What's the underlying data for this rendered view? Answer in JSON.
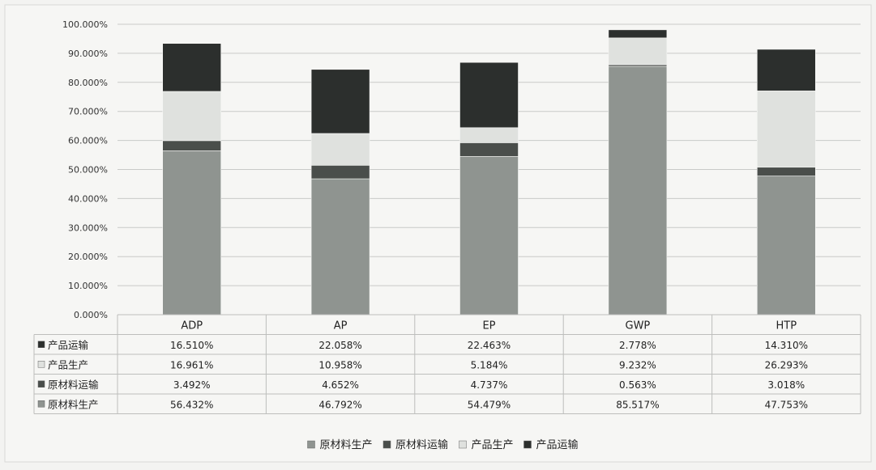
{
  "chart_data": {
    "type": "bar",
    "stacked": true,
    "title": "",
    "xlabel": "",
    "ylabel": "",
    "categories": [
      "ADP",
      "AP",
      "EP",
      "GWP",
      "HTP"
    ],
    "ylim": [
      0,
      100
    ],
    "y_ticks": [
      "0.000%",
      "10.000%",
      "20.000%",
      "30.000%",
      "40.000%",
      "50.000%",
      "60.000%",
      "70.000%",
      "80.000%",
      "90.000%",
      "100.000%"
    ],
    "grid": true,
    "legend_position": "bottom",
    "series": [
      {
        "name": "原材料生产",
        "color": "#8f9490",
        "values": [
          56.432,
          46.792,
          54.479,
          85.517,
          47.753
        ],
        "labels": [
          "56.432%",
          "46.792%",
          "54.479%",
          "85.517%",
          "47.753%"
        ]
      },
      {
        "name": "原材料运输",
        "color": "#4a4e4b",
        "values": [
          3.492,
          4.652,
          4.737,
          0.563,
          3.018
        ],
        "labels": [
          "3.492%",
          "4.652%",
          "4.737%",
          "0.563%",
          "3.018%"
        ]
      },
      {
        "name": "产品生产",
        "color": "#dfe1de",
        "values": [
          16.961,
          10.958,
          5.184,
          9.232,
          26.293
        ],
        "labels": [
          "16.961%",
          "10.958%",
          "5.184%",
          "9.232%",
          "26.293%"
        ]
      },
      {
        "name": "产品运输",
        "color": "#2c2f2d",
        "values": [
          16.51,
          22.058,
          22.463,
          2.778,
          14.31
        ],
        "labels": [
          "16.510%",
          "22.058%",
          "22.463%",
          "2.778%",
          "14.310%"
        ]
      }
    ],
    "table_row_order": [
      3,
      2,
      1,
      0
    ]
  }
}
